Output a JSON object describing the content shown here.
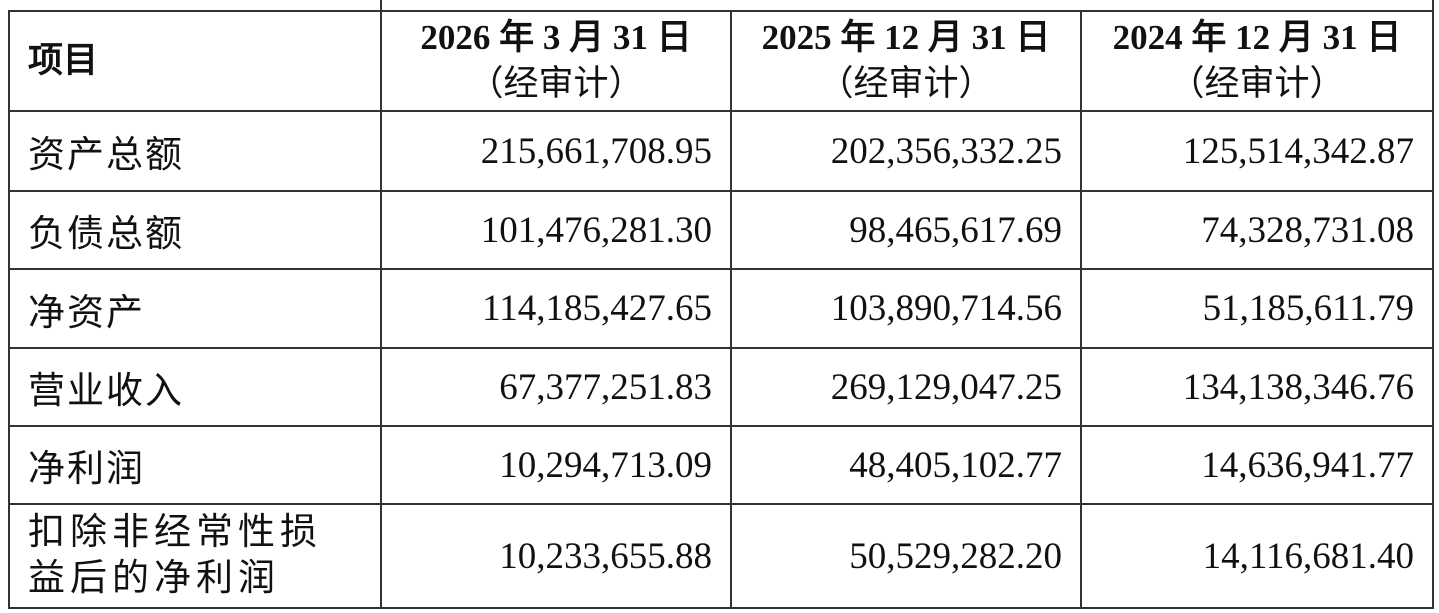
{
  "table": {
    "header": [
      "项目",
      {
        "line1": "2026 年 3 月 31 日",
        "line2": "（经审计）"
      },
      {
        "line1": "2025 年 12 月 31 日",
        "line2": "（经审计）"
      },
      {
        "line1": "2024 年 12 月 31 日",
        "line2": "（经审计）"
      }
    ],
    "rows": [
      [
        "资产总额",
        "215,661,708.95",
        "202,356,332.25",
        "125,514,342.87"
      ],
      [
        "负债总额",
        "101,476,281.30",
        "98,465,617.69",
        "74,328,731.08"
      ],
      [
        "净资产",
        "114,185,427.65",
        "103,890,714.56",
        "51,185,611.79"
      ],
      [
        "营业收入",
        "67,377,251.83",
        "269,129,047.25",
        "134,138,346.76"
      ],
      [
        "净利润",
        "10,294,713.09",
        "48,405,102.77",
        "14,636,941.77"
      ],
      [
        "扣除非经常性损益后的净利润",
        "10,233,655.88",
        "50,529,282.20",
        "14,116,681.40"
      ]
    ]
  }
}
